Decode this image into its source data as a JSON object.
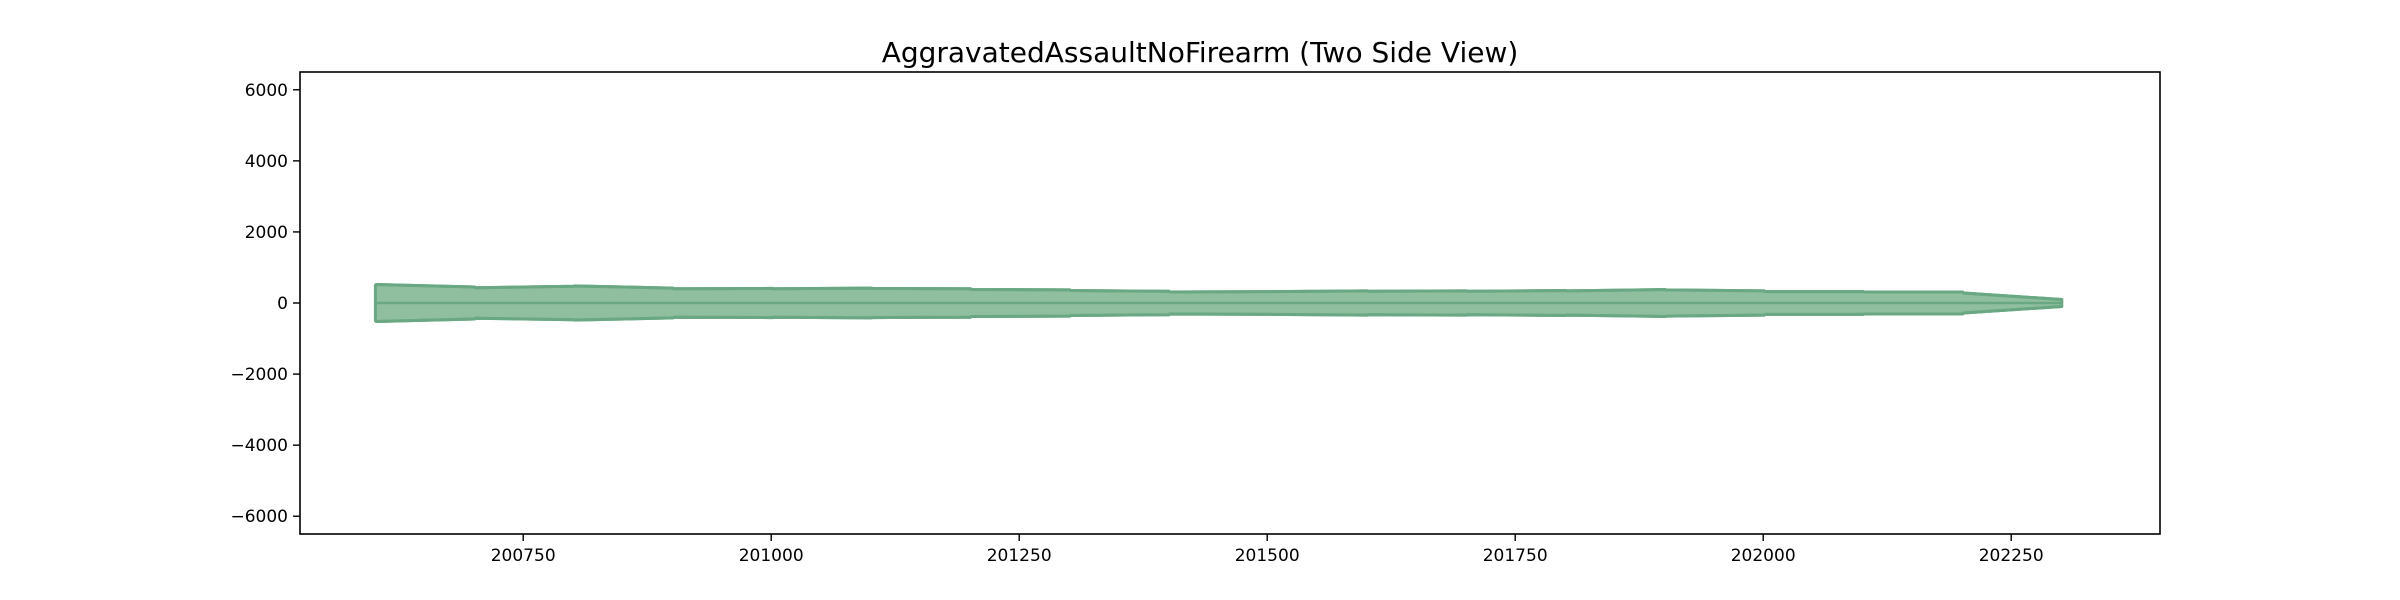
{
  "chart_data": {
    "type": "area",
    "title": "AggravatedAssaultNoFirearm (Two Side View)",
    "xlabel": "",
    "ylabel": "",
    "xlim": [
      200525,
      202400
    ],
    "ylim": [
      -6500,
      6500
    ],
    "xticks": [
      200750,
      201000,
      201250,
      201500,
      201750,
      202000,
      202250
    ],
    "xtick_labels": [
      "200750",
      "201000",
      "201250",
      "201500",
      "201750",
      "202000",
      "202250"
    ],
    "yticks": [
      -6000,
      -4000,
      -2000,
      0,
      2000,
      4000,
      6000
    ],
    "ytick_labels": [
      "−6000",
      "−4000",
      "−2000",
      "0",
      "2000",
      "4000",
      "6000"
    ],
    "grid": false,
    "fill_color": "#8fbf9f",
    "edge_color": "#6aa884",
    "series": [
      {
        "x": [
          200601,
          200602,
          200701,
          200702,
          200801,
          200802,
          200901,
          200902,
          201001,
          201002,
          201101,
          201102,
          201201,
          201202,
          201301,
          201302,
          201401,
          201402,
          201501,
          201502,
          201601,
          201602,
          201701,
          201702,
          201801,
          201802,
          201901,
          201902,
          202001,
          202002,
          202101,
          202102,
          202201,
          202202,
          202301
        ],
        "values": [
          500,
          520,
          450,
          430,
          470,
          480,
          420,
          400,
          410,
          400,
          420,
          410,
          400,
          380,
          370,
          350,
          330,
          310,
          320,
          320,
          340,
          330,
          340,
          330,
          350,
          340,
          380,
          370,
          340,
          320,
          320,
          310,
          310,
          280,
          100
        ]
      }
    ]
  }
}
